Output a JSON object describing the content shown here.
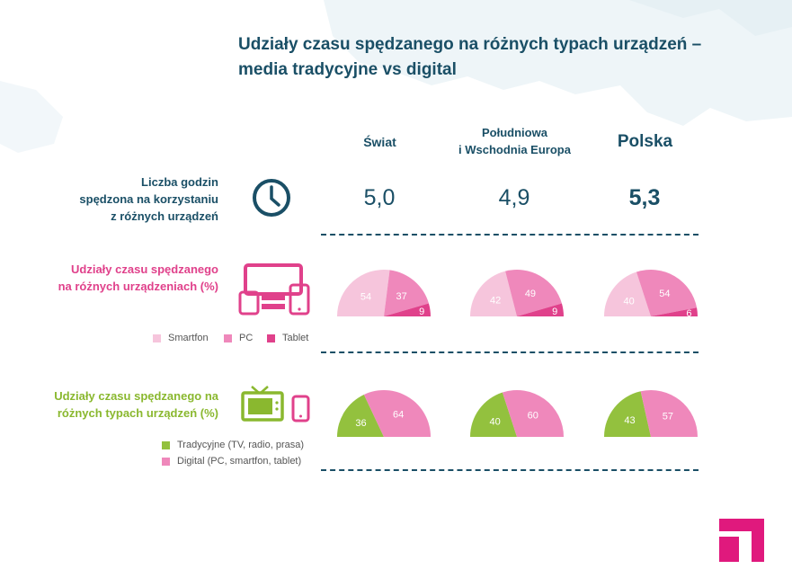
{
  "title": "Udziały czasu spędzanego na różnych typach urządzeń – media tradycyjne vs digital",
  "columns": [
    "Świat",
    "Południowa\ni Wschodnia Europa",
    "Polska"
  ],
  "rows": {
    "hours_label": "Liczba godzin\nspędzona na korzystaniu\nz różnych urządzeń",
    "devices_label": "Udziały czasu spędzanego\nna różnych urządzeniach (%)",
    "types_label": "Udziały czasu spędzanego na\nróżnych typach urządzeń  (%)"
  },
  "hours": [
    "5,0",
    "4,9",
    "5,3"
  ],
  "legend_devices": [
    "Smartfon",
    "PC",
    "Tablet"
  ],
  "legend_types": [
    "Tradycyjne (TV, radio, prasa)",
    "Digital (PC, smartfon, tablet)"
  ],
  "colors": {
    "navy": "#1a4f66",
    "smartfon": "#f6c5dc",
    "pc": "#ef88bb",
    "tablet": "#e0418b",
    "tradycyjne": "#93c13e",
    "digital": "#ef88bb",
    "logo": "#e0197d",
    "magenta_label": "#e0418b",
    "green_label": "#8ab82f"
  },
  "icons": [
    "clock-icon",
    "devices-icon",
    "tv-phone-icon",
    "brand-logo-icon"
  ],
  "chart_data": [
    {
      "type": "pie",
      "title": "Udziały czasu spędzanego na różnych urządzeniach (%)",
      "variant": "semicircle",
      "categories": [
        "Świat",
        "Południowa i Wschodnia Europa",
        "Polska"
      ],
      "series": [
        {
          "name": "Smartfon",
          "values": [
            54,
            42,
            40
          ]
        },
        {
          "name": "PC",
          "values": [
            37,
            49,
            54
          ]
        },
        {
          "name": "Tablet",
          "values": [
            9,
            9,
            6
          ]
        }
      ]
    },
    {
      "type": "pie",
      "title": "Udziały czasu spędzanego na różnych typach urządzeń (%)",
      "variant": "semicircle",
      "categories": [
        "Świat",
        "Południowa i Wschodnia Europa",
        "Polska"
      ],
      "series": [
        {
          "name": "Tradycyjne (TV, radio, prasa)",
          "values": [
            36,
            40,
            43
          ]
        },
        {
          "name": "Digital (PC, smartfon, tablet)",
          "values": [
            64,
            60,
            57
          ]
        }
      ]
    }
  ]
}
